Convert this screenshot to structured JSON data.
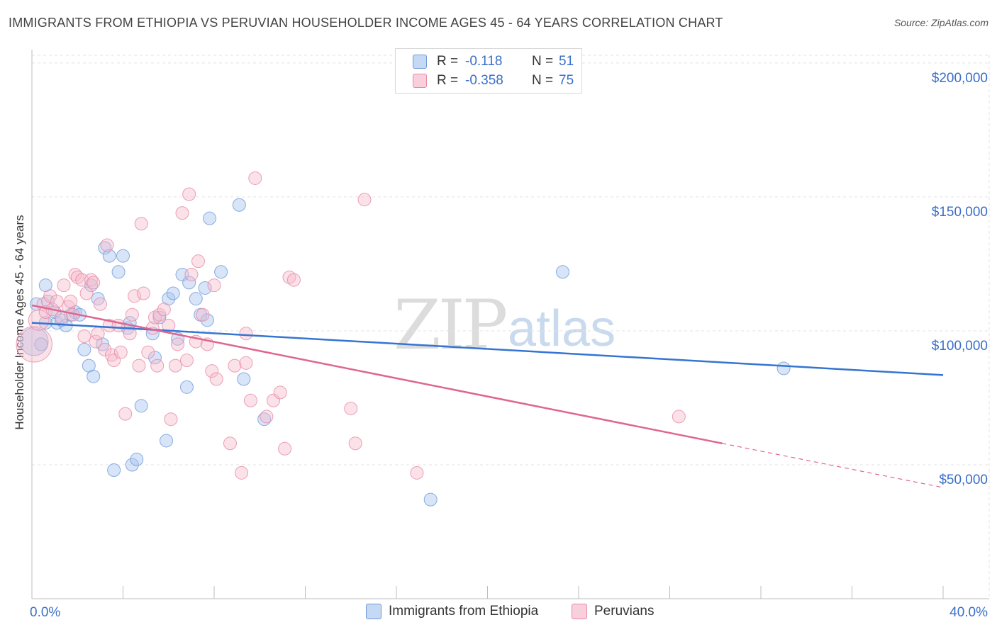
{
  "title": "IMMIGRANTS FROM ETHIOPIA VS PERUVIAN HOUSEHOLDER INCOME AGES 45 - 64 YEARS CORRELATION CHART",
  "source": "Source: ZipAtlas.com",
  "watermark": {
    "zip": "ZIP",
    "atlas": "atlas"
  },
  "legend": {
    "rows": [
      {
        "r_label": "R =",
        "r_value": "-0.118",
        "n_label": "N =",
        "n_value": "51"
      },
      {
        "r_label": "R =",
        "r_value": "-0.358",
        "n_label": "N =",
        "n_value": "75"
      }
    ]
  },
  "bottom_legend": [
    "Immigrants from Ethiopia",
    "Peruvians"
  ],
  "colors": {
    "blue_fill": "#a9c4ef",
    "blue_stroke": "#6f9ad8",
    "blue_line": "#3575d2",
    "pink_fill": "#f6bccd",
    "pink_stroke": "#e68aa8",
    "pink_line": "#e0668f",
    "tick_text": "#3a6fc9",
    "grid": "#e3e3e3"
  },
  "chart_data": {
    "type": "scatter",
    "title": "IMMIGRANTS FROM ETHIOPIA VS PERUVIAN HOUSEHOLDER INCOME AGES 45 - 64 YEARS CORRELATION CHART",
    "xlabel": "",
    "ylabel": "Householder Income Ages 45 - 64 years",
    "xlim": [
      0,
      40
    ],
    "ylim": [
      0,
      205000
    ],
    "x_tick_labels": [
      "0.0%",
      "40.0%"
    ],
    "y_ticks": [
      50000,
      100000,
      150000,
      200000
    ],
    "y_tick_labels": [
      "$50,000",
      "$100,000",
      "$150,000",
      "$200,000"
    ],
    "grid": true,
    "legend_position": "top-center",
    "series": [
      {
        "name": "Immigrants from Ethiopia",
        "color": "blue",
        "points": [
          [
            0.1,
            96000,
            2.2
          ],
          [
            0.2,
            110000,
            1
          ],
          [
            0.4,
            95000,
            1
          ],
          [
            0.6,
            117000,
            1
          ],
          [
            0.7,
            111000,
            1
          ],
          [
            1.0,
            107000,
            1
          ],
          [
            1.1,
            103000,
            1
          ],
          [
            1.3,
            104000,
            1
          ],
          [
            1.5,
            102000,
            1
          ],
          [
            1.7,
            106000,
            1
          ],
          [
            1.9,
            107000,
            1
          ],
          [
            2.1,
            106000,
            1
          ],
          [
            2.3,
            93000,
            1
          ],
          [
            2.5,
            87000,
            1
          ],
          [
            2.6,
            117000,
            1
          ],
          [
            2.7,
            83000,
            1
          ],
          [
            2.9,
            112000,
            1
          ],
          [
            3.1,
            95000,
            1
          ],
          [
            3.2,
            131000,
            1
          ],
          [
            3.4,
            128000,
            1
          ],
          [
            3.6,
            48000,
            1
          ],
          [
            3.8,
            122000,
            1
          ],
          [
            4.0,
            128000,
            1
          ],
          [
            4.2,
            101000,
            1
          ],
          [
            4.3,
            103000,
            1
          ],
          [
            4.4,
            50000,
            1
          ],
          [
            4.6,
            52000,
            1
          ],
          [
            4.8,
            72000,
            1
          ],
          [
            5.3,
            99000,
            1
          ],
          [
            5.4,
            90000,
            1
          ],
          [
            5.6,
            105000,
            1
          ],
          [
            5.9,
            59000,
            1
          ],
          [
            6.0,
            112000,
            1
          ],
          [
            6.2,
            114000,
            1
          ],
          [
            6.4,
            97000,
            1
          ],
          [
            6.6,
            121000,
            1
          ],
          [
            6.8,
            79000,
            1
          ],
          [
            6.9,
            118000,
            1
          ],
          [
            7.2,
            112000,
            1
          ],
          [
            7.4,
            106000,
            1
          ],
          [
            7.6,
            116000,
            1
          ],
          [
            7.7,
            104000,
            1
          ],
          [
            7.8,
            142000,
            1
          ],
          [
            8.3,
            122000,
            1
          ],
          [
            9.1,
            147000,
            1
          ],
          [
            9.3,
            82000,
            1
          ],
          [
            10.2,
            67000,
            1
          ],
          [
            17.5,
            37000,
            1
          ],
          [
            23.3,
            122000,
            1
          ],
          [
            33.0,
            86000,
            1
          ],
          [
            0.6,
            103000,
            1
          ]
        ]
      },
      {
        "name": "Peruvians",
        "color": "pink",
        "points": [
          [
            0.1,
            95000,
            2.8
          ],
          [
            0.3,
            104000,
            1.6
          ],
          [
            0.5,
            110000,
            1
          ],
          [
            0.6,
            107000,
            1
          ],
          [
            0.8,
            113000,
            1
          ],
          [
            0.9,
            108000,
            1
          ],
          [
            1.1,
            111000,
            1
          ],
          [
            1.3,
            105000,
            1
          ],
          [
            1.4,
            117000,
            1
          ],
          [
            1.6,
            109000,
            1
          ],
          [
            1.7,
            111000,
            1
          ],
          [
            1.8,
            106000,
            1
          ],
          [
            1.9,
            121000,
            1
          ],
          [
            2.0,
            120000,
            1
          ],
          [
            2.2,
            119000,
            1
          ],
          [
            2.3,
            98000,
            1
          ],
          [
            2.4,
            114000,
            1
          ],
          [
            2.6,
            119000,
            1
          ],
          [
            2.7,
            118000,
            1
          ],
          [
            2.8,
            96000,
            1
          ],
          [
            2.9,
            99000,
            1
          ],
          [
            3.0,
            110000,
            1
          ],
          [
            3.2,
            93000,
            1
          ],
          [
            3.3,
            132000,
            1
          ],
          [
            3.4,
            102000,
            1
          ],
          [
            3.5,
            91000,
            1
          ],
          [
            3.6,
            89000,
            1
          ],
          [
            3.8,
            102000,
            1
          ],
          [
            3.9,
            92000,
            1
          ],
          [
            4.1,
            69000,
            1
          ],
          [
            4.3,
            99000,
            1
          ],
          [
            4.4,
            106000,
            1
          ],
          [
            4.5,
            113000,
            1
          ],
          [
            4.7,
            87000,
            1
          ],
          [
            4.8,
            140000,
            1
          ],
          [
            4.9,
            114000,
            1
          ],
          [
            5.1,
            92000,
            1
          ],
          [
            5.3,
            101000,
            1
          ],
          [
            5.4,
            105000,
            1
          ],
          [
            5.5,
            87000,
            1
          ],
          [
            5.6,
            106000,
            1
          ],
          [
            5.8,
            108000,
            1
          ],
          [
            6.0,
            102000,
            1
          ],
          [
            6.1,
            67000,
            1
          ],
          [
            6.3,
            87000,
            1
          ],
          [
            6.4,
            95000,
            1
          ],
          [
            6.6,
            144000,
            1
          ],
          [
            6.8,
            89000,
            1
          ],
          [
            6.9,
            151000,
            1
          ],
          [
            7.0,
            121000,
            1
          ],
          [
            7.2,
            96000,
            1
          ],
          [
            7.3,
            126000,
            1
          ],
          [
            7.5,
            106000,
            1
          ],
          [
            7.7,
            95000,
            1
          ],
          [
            7.9,
            85000,
            1
          ],
          [
            8.0,
            117000,
            1
          ],
          [
            8.1,
            82000,
            1
          ],
          [
            8.7,
            58000,
            1
          ],
          [
            8.9,
            87000,
            1
          ],
          [
            9.2,
            47000,
            1
          ],
          [
            9.4,
            99000,
            1
          ],
          [
            9.6,
            74000,
            1
          ],
          [
            9.8,
            157000,
            1
          ],
          [
            10.3,
            68000,
            1
          ],
          [
            10.6,
            74000,
            1
          ],
          [
            10.9,
            77000,
            1
          ],
          [
            11.1,
            56000,
            1
          ],
          [
            11.3,
            120000,
            1
          ],
          [
            11.5,
            119000,
            1
          ],
          [
            14.0,
            71000,
            1
          ],
          [
            14.2,
            58000,
            1
          ],
          [
            14.6,
            149000,
            1
          ],
          [
            16.9,
            47000,
            1
          ],
          [
            28.4,
            68000,
            1
          ],
          [
            9.4,
            88000,
            1
          ]
        ]
      }
    ],
    "trend_lines": [
      {
        "series": "Immigrants from Ethiopia",
        "x0": 0,
        "y0": 103000,
        "x1": 40,
        "y1": 83500,
        "dash_from": null
      },
      {
        "series": "Peruvians",
        "x0": 0,
        "y0": 109500,
        "x1": 40,
        "y1": 41500,
        "dash_from": 30.3
      }
    ]
  }
}
